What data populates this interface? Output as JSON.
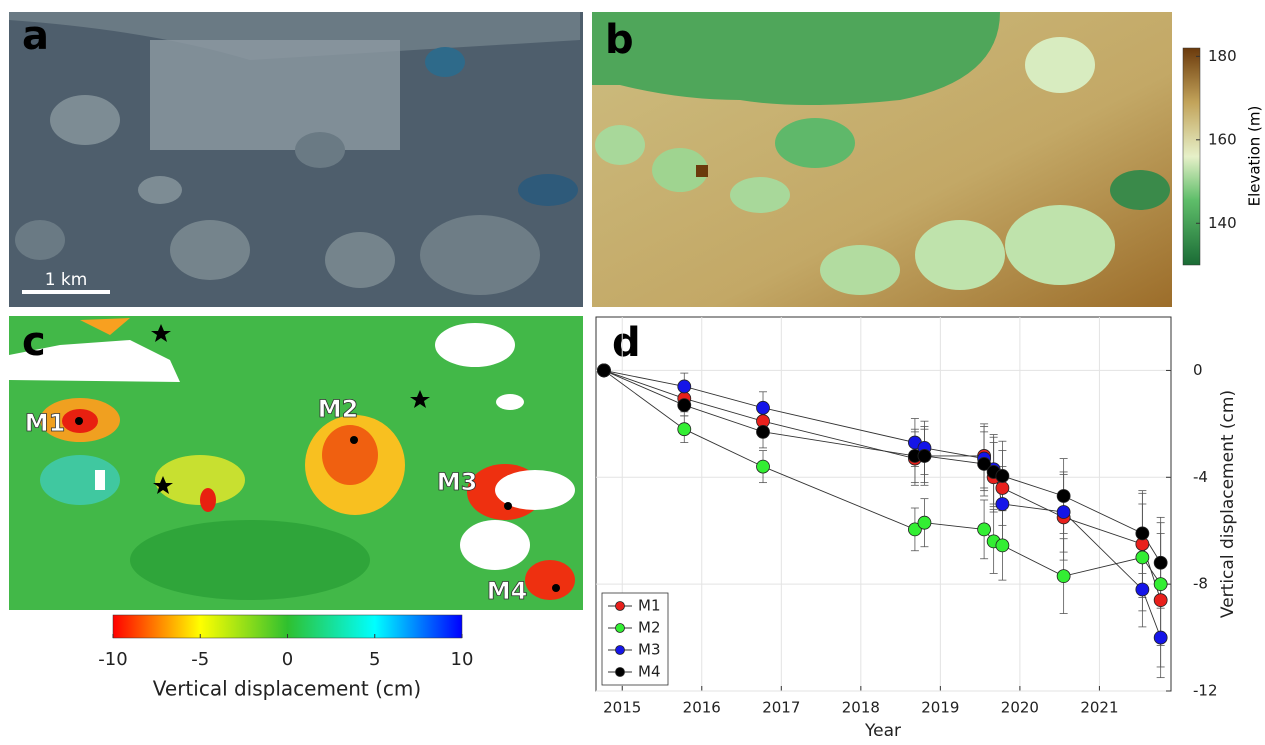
{
  "panels": {
    "a": {
      "label": "a",
      "scale_bar": "1 km"
    },
    "b": {
      "label": "b",
      "colorbar": {
        "label": "Elevation (m)",
        "lim": [
          130,
          182
        ],
        "ticks": [
          140,
          160,
          180
        ]
      }
    },
    "c": {
      "label": "c",
      "markers": [
        "M1",
        "M2",
        "M3",
        "M4"
      ],
      "colorbar": {
        "label": "Vertical displacement (cm)",
        "lim": [
          -10,
          10
        ],
        "ticks": [
          -10,
          -5,
          0,
          5,
          10
        ]
      }
    }
  },
  "chart_data": {
    "type": "line",
    "panel_label": "d",
    "x_label": "Year",
    "y_label": "Vertical displacement (cm)",
    "x": [
      2014.77,
      2015.78,
      2016.77,
      2018.68,
      2018.8,
      2019.55,
      2019.67,
      2019.78,
      2020.55,
      2021.54,
      2021.77
    ],
    "xlim": [
      2014.67,
      2021.9
    ],
    "xticks": [
      2015,
      2016,
      2017,
      2018,
      2019,
      2020,
      2021
    ],
    "ylim": [
      -12,
      2
    ],
    "yticks": [
      0,
      -4,
      -8,
      -12
    ],
    "grid": true,
    "legend": "lower left",
    "series": [
      {
        "name": "M1",
        "color": "#e8201c",
        "values": [
          0,
          -1.05,
          -1.9,
          -3.3,
          -3.2,
          -3.2,
          -4.0,
          -4.4,
          -5.5,
          -6.5,
          -8.6
        ],
        "errors": [
          0,
          0.5,
          0.6,
          1.0,
          1.0,
          1.2,
          1.3,
          1.4,
          1.6,
          2.0,
          2.5
        ]
      },
      {
        "name": "M2",
        "color": "#33ee33",
        "values": [
          0,
          -2.2,
          -3.6,
          -5.95,
          -5.7,
          -5.95,
          -6.4,
          -6.55,
          -7.7,
          -7.0,
          -8.0
        ],
        "errors": [
          0,
          0.5,
          0.6,
          0.8,
          0.9,
          1.1,
          1.2,
          1.3,
          1.4,
          2.0,
          2.3
        ]
      },
      {
        "name": "M3",
        "color": "#1515e8",
        "values": [
          0,
          -0.6,
          -1.4,
          -2.7,
          -2.9,
          -3.3,
          -3.7,
          -5.0,
          -5.3,
          -8.2,
          -10.0
        ],
        "errors": [
          0,
          0.5,
          0.6,
          0.9,
          1.0,
          1.2,
          1.3,
          1.4,
          1.5,
          1.4,
          1.5
        ]
      },
      {
        "name": "M4",
        "color": "#000000",
        "values": [
          0,
          -1.3,
          -2.3,
          -3.2,
          -3.2,
          -3.5,
          -3.8,
          -3.95,
          -4.7,
          -6.1,
          -7.2
        ],
        "errors": [
          0,
          0.4,
          0.6,
          1.0,
          1.1,
          1.2,
          1.3,
          1.3,
          1.4,
          1.5,
          1.7
        ]
      }
    ]
  }
}
